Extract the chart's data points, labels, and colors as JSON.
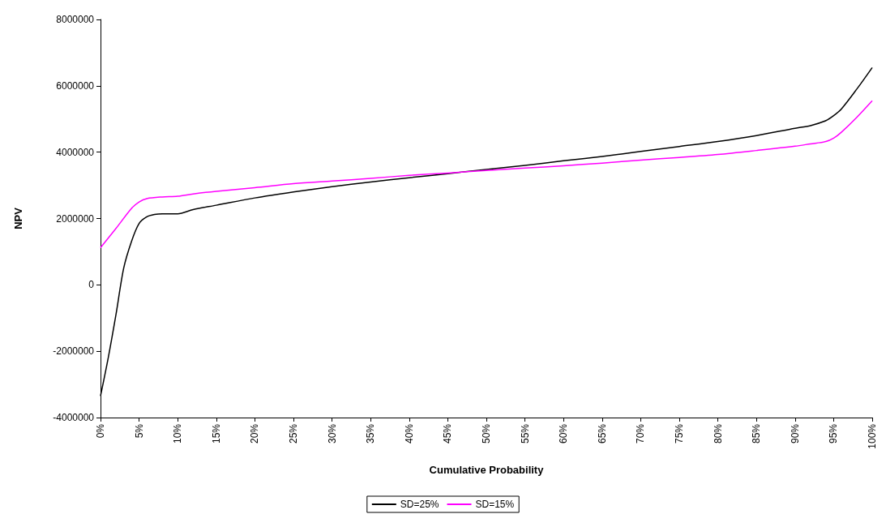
{
  "chart_data": {
    "type": "line",
    "xlabel": "Cumulative Probability",
    "ylabel": "NPV",
    "xlim": [
      0,
      100
    ],
    "xticks": [
      {
        "value": 0,
        "label": "0%"
      },
      {
        "value": 5,
        "label": "5%"
      },
      {
        "value": 10,
        "label": "10%"
      },
      {
        "value": 15,
        "label": "15%"
      },
      {
        "value": 20,
        "label": "20%"
      },
      {
        "value": 25,
        "label": "25%"
      },
      {
        "value": 30,
        "label": "30%"
      },
      {
        "value": 35,
        "label": "35%"
      },
      {
        "value": 40,
        "label": "40%"
      },
      {
        "value": 45,
        "label": "45%"
      },
      {
        "value": 50,
        "label": "50%"
      },
      {
        "value": 55,
        "label": "55%"
      },
      {
        "value": 60,
        "label": "60%"
      },
      {
        "value": 65,
        "label": "65%"
      },
      {
        "value": 70,
        "label": "70%"
      },
      {
        "value": 75,
        "label": "75%"
      },
      {
        "value": 80,
        "label": "80%"
      },
      {
        "value": 85,
        "label": "85%"
      },
      {
        "value": 90,
        "label": "90%"
      },
      {
        "value": 95,
        "label": "95%"
      },
      {
        "value": 100,
        "label": "100%"
      }
    ],
    "ylim": [
      -4000000,
      8000000
    ],
    "yticks": [
      -4000000,
      -2000000,
      0,
      2000000,
      4000000,
      6000000,
      8000000
    ],
    "grid": false,
    "legend": "bottom",
    "marker": "none",
    "line_style": "solid",
    "series": [
      {
        "name": "SD=25%",
        "color": "#000000",
        "x": [
          0,
          1,
          2,
          3,
          4,
          5,
          6,
          7,
          8,
          10,
          12,
          15,
          20,
          25,
          30,
          35,
          40,
          45,
          50,
          55,
          60,
          65,
          70,
          75,
          80,
          85,
          90,
          92,
          94,
          95,
          96,
          98,
          100
        ],
        "values": [
          -3350000,
          -2200000,
          -900000,
          500000,
          1300000,
          1850000,
          2050000,
          2120000,
          2140000,
          2140000,
          2270000,
          2400000,
          2620000,
          2800000,
          2960000,
          3100000,
          3230000,
          3350000,
          3480000,
          3600000,
          3740000,
          3870000,
          4020000,
          4170000,
          4320000,
          4500000,
          4720000,
          4800000,
          4950000,
          5100000,
          5300000,
          5900000,
          6550000
        ]
      },
      {
        "name": "SD=15%",
        "color": "#ff00ff",
        "x": [
          0,
          2,
          4,
          5,
          6,
          8,
          10,
          12,
          15,
          20,
          25,
          30,
          35,
          40,
          45,
          50,
          55,
          60,
          65,
          70,
          75,
          80,
          85,
          90,
          92,
          94,
          95,
          96,
          98,
          100
        ],
        "values": [
          1120000,
          1700000,
          2300000,
          2500000,
          2600000,
          2650000,
          2670000,
          2740000,
          2820000,
          2930000,
          3050000,
          3130000,
          3210000,
          3300000,
          3370000,
          3450000,
          3520000,
          3590000,
          3670000,
          3760000,
          3840000,
          3930000,
          4050000,
          4180000,
          4250000,
          4320000,
          4420000,
          4600000,
          5050000,
          5550000
        ]
      }
    ]
  }
}
